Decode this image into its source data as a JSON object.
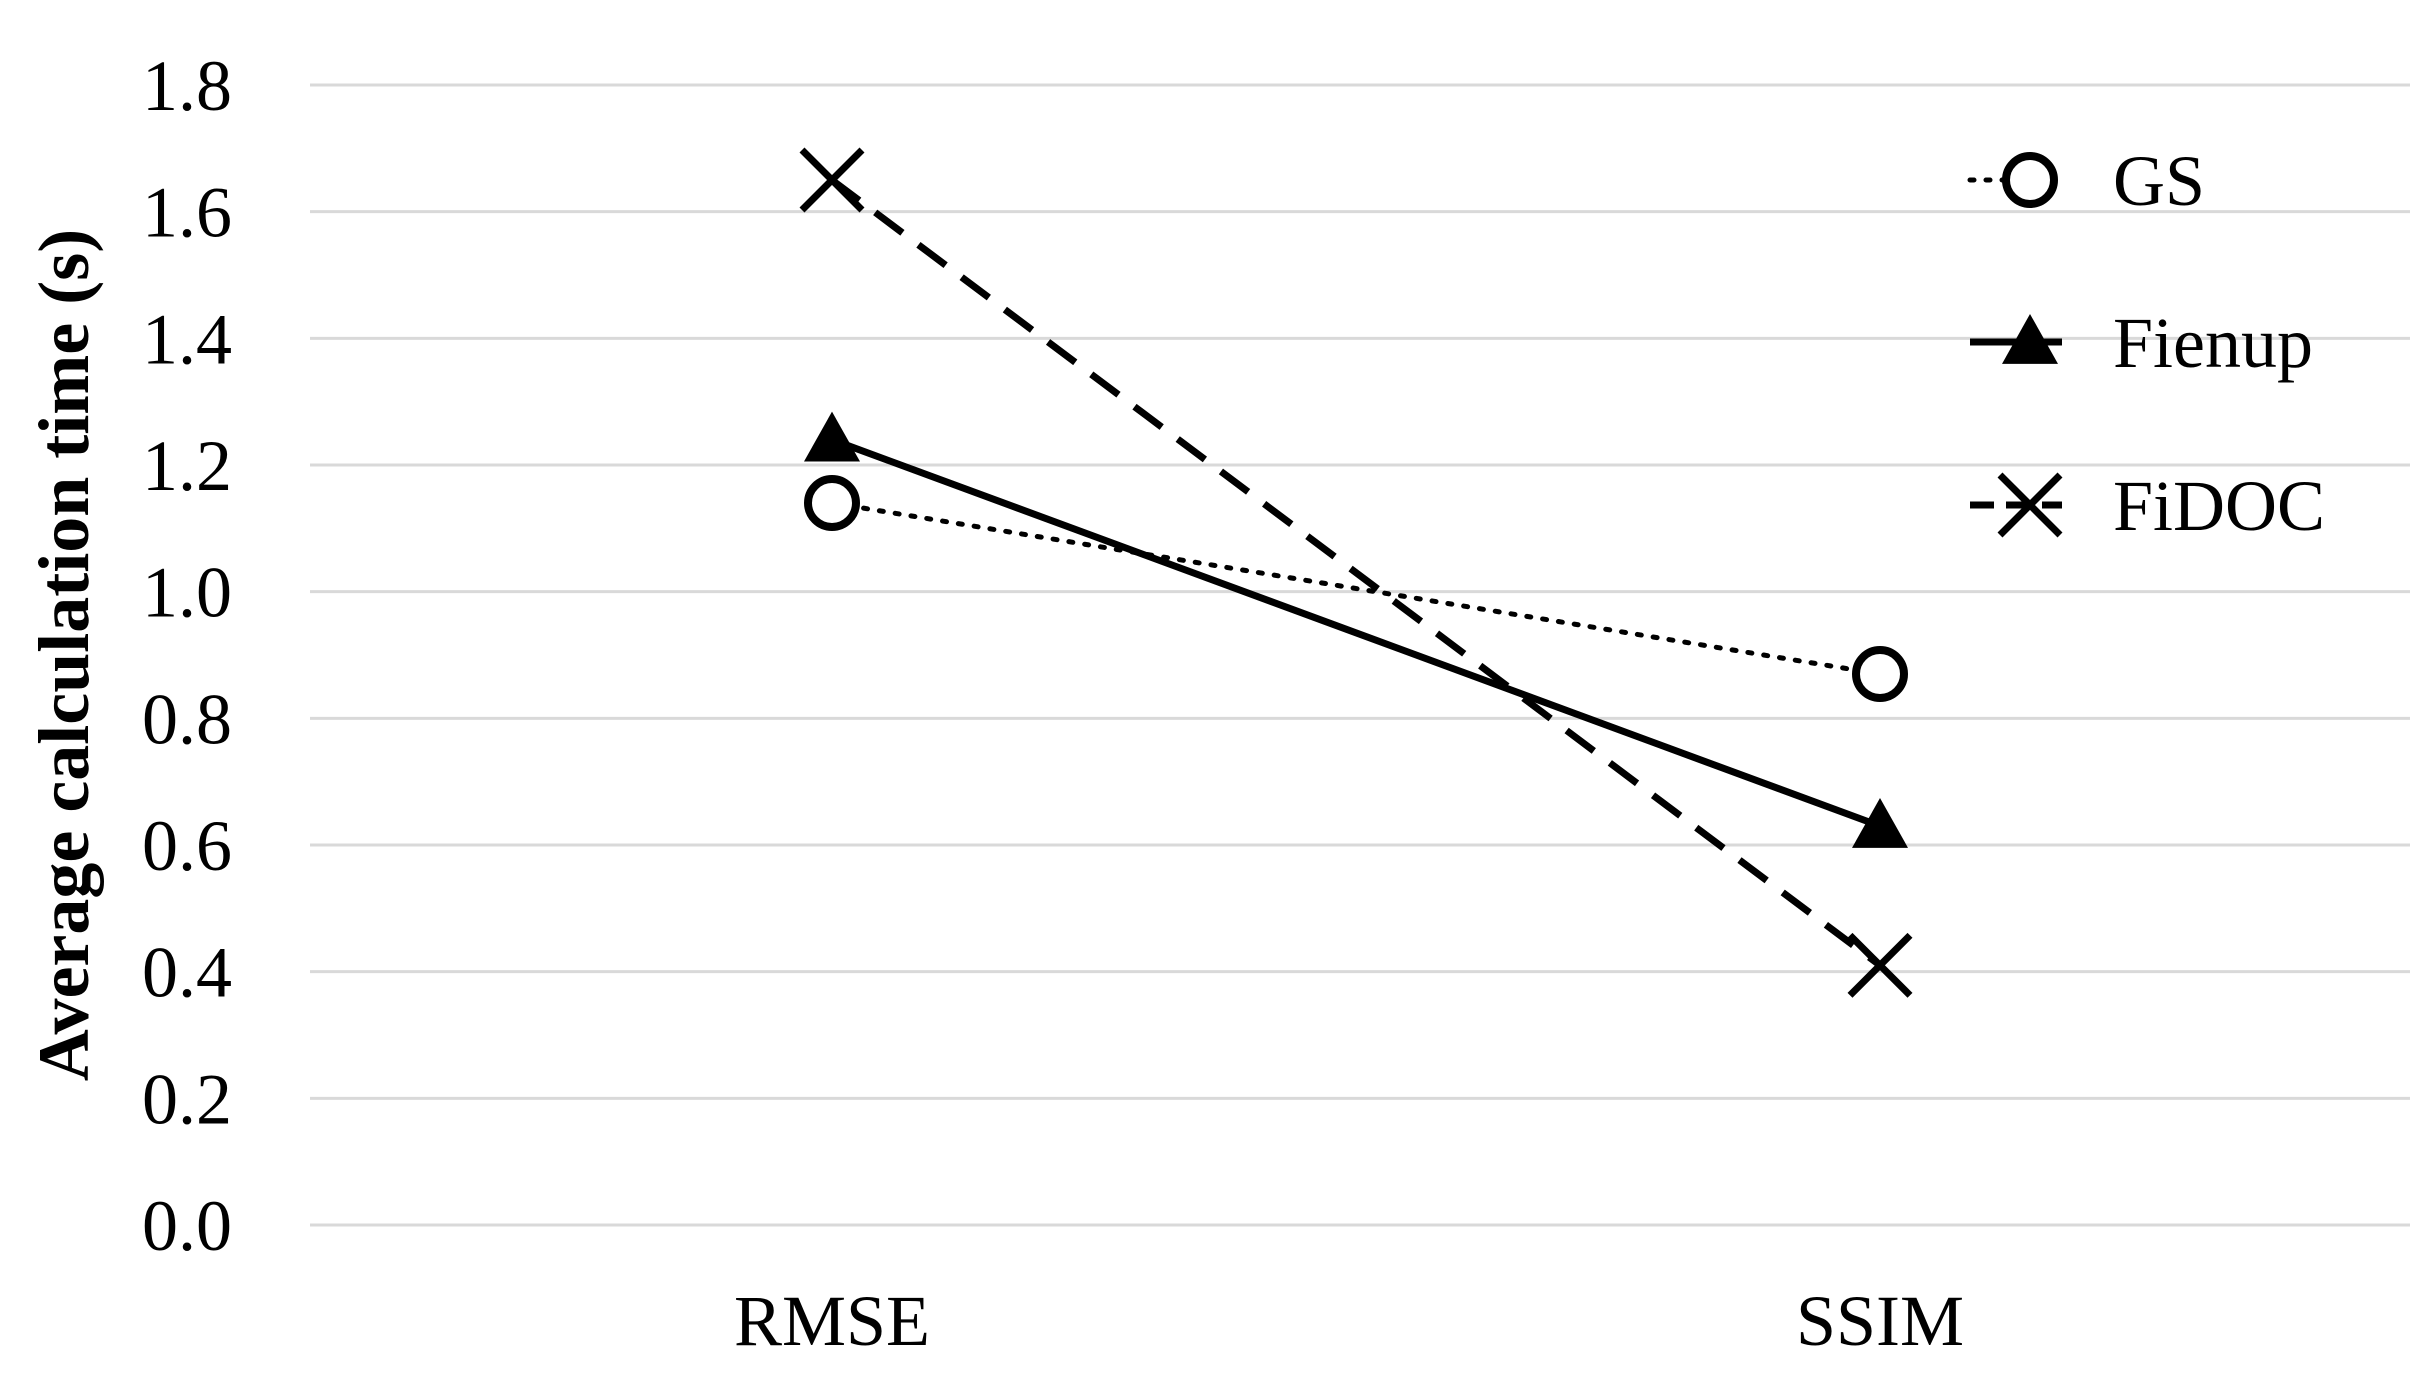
{
  "chart_data": {
    "type": "line",
    "categories": [
      "RMSE",
      "SSIM"
    ],
    "ylabel": "Average calculation time (s)",
    "xlabel": "",
    "ylim": [
      0,
      1.8
    ],
    "yticks": [
      "0.0",
      "0.2",
      "0.4",
      "0.6",
      "0.8",
      "1.0",
      "1.2",
      "1.4",
      "1.6",
      "1.8"
    ],
    "grid": true,
    "legend_position": "top-right",
    "series": [
      {
        "name": "GS",
        "values": [
          1.14,
          0.87
        ],
        "marker": "circle",
        "line_style": "dotted",
        "color": "#000000"
      },
      {
        "name": "Fienup",
        "values": [
          1.24,
          0.63
        ],
        "marker": "triangle",
        "line_style": "solid",
        "color": "#000000"
      },
      {
        "name": "FiDOC",
        "values": [
          1.65,
          0.41
        ],
        "marker": "x",
        "line_style": "dashed",
        "color": "#000000"
      }
    ]
  }
}
